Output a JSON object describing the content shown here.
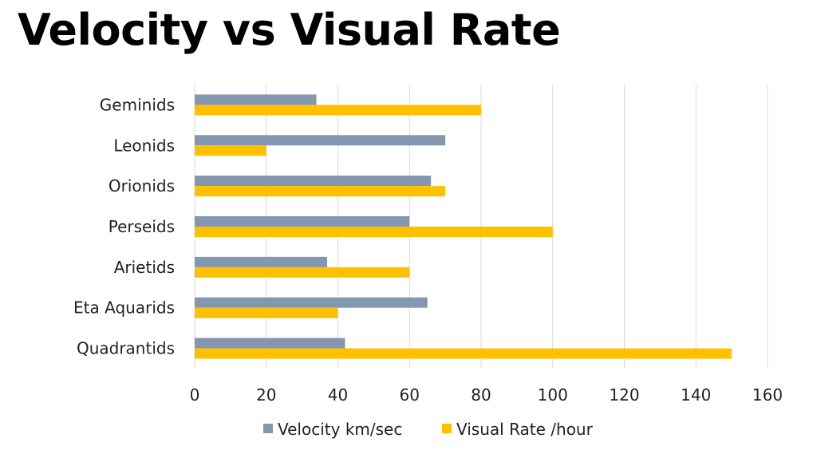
{
  "chart_data": {
    "type": "bar",
    "orientation": "horizontal",
    "title": "Velocity vs Visual Rate",
    "categories": [
      "Geminids",
      "Leonids",
      "Orionids",
      "Perseids",
      "Arietids",
      "Eta Aquarids",
      "Quadrantids"
    ],
    "series": [
      {
        "name": "Velocity km/sec",
        "color": "#8497B0",
        "values": [
          34,
          70,
          66,
          60,
          37,
          65,
          42
        ]
      },
      {
        "name": "Visual Rate /hour",
        "color": "#FFC000",
        "values": [
          80,
          20,
          70,
          100,
          60,
          40,
          150
        ]
      }
    ],
    "xlim": [
      0,
      160
    ],
    "xticks": [
      "0",
      "20",
      "40",
      "60",
      "80",
      "100",
      "120",
      "140",
      "160"
    ],
    "grid": "vertical",
    "legend_position": "bottom"
  }
}
